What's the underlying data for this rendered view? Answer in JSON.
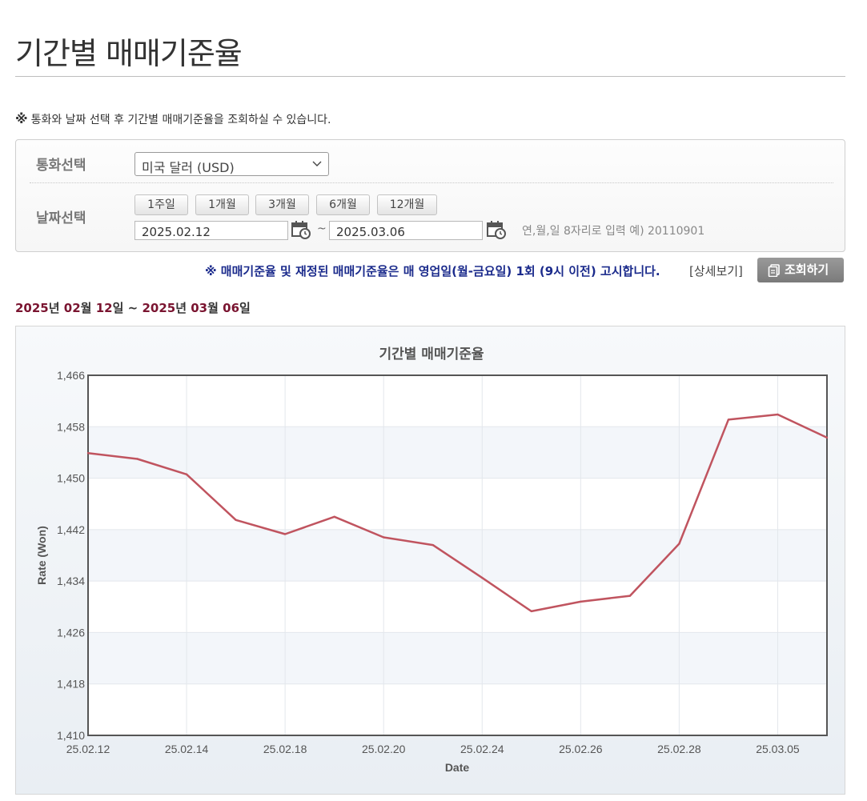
{
  "page": {
    "title": "기간별 매매기준율",
    "notice_mark": "※",
    "notice": "통화와 날짜 선택 후 기간별 매매기준율을 조회하실 수 있습니다."
  },
  "filter": {
    "currency_label": "통화선택",
    "currency_value": "미국 달러 (USD)",
    "date_label": "날짜선택",
    "period_buttons": [
      "1주일",
      "1개월",
      "3개월",
      "6개월",
      "12개월"
    ],
    "start_date": "2025.02.12",
    "end_date": "2025.03.06",
    "tilde": "~",
    "date_hint": "연,월,일 8자리로 입력 예) 20110901"
  },
  "actions": {
    "announcement": "※ 매매기준율 및 재정된 매매기준율은 매 영업일(월-금요일) 1회 (9시 이전) 고시합니다.",
    "detail_link": "[상세보기]",
    "search_button": "조회하기"
  },
  "range": {
    "start_year": "2025",
    "start_year_unit": "년",
    "start_month": "02",
    "start_month_unit": "월",
    "start_day": "12",
    "start_day_unit": "일",
    "separator": "~",
    "end_year": "2025",
    "end_year_unit": "년",
    "end_month": "03",
    "end_month_unit": "월",
    "end_day": "06",
    "end_day_unit": "일"
  },
  "colors": {
    "line": "#c0545f",
    "range_number": "#7a1430",
    "announcement": "#1b2b8c"
  },
  "chart_data": {
    "type": "line",
    "title": "기간별 매매기준율",
    "xlabel": "Date",
    "ylabel": "Rate (Won)",
    "ylim": [
      1410,
      1466
    ],
    "yticks": [
      "1,466",
      "1,458",
      "1,450",
      "1,442",
      "1,434",
      "1,426",
      "1,418",
      "1,410"
    ],
    "xtick_labels": [
      "25.02.12",
      "25.02.14",
      "25.02.18",
      "25.02.20",
      "25.02.24",
      "25.02.26",
      "25.02.28",
      "25.03.05"
    ],
    "x": [
      "25.02.12",
      "25.02.13",
      "25.02.14",
      "25.02.17",
      "25.02.18",
      "25.02.19",
      "25.02.20",
      "25.02.21",
      "25.02.24",
      "25.02.25",
      "25.02.26",
      "25.02.27",
      "25.02.28",
      "25.03.04",
      "25.03.05",
      "25.03.06"
    ],
    "series": [
      {
        "values": [
          1453.9,
          1453.0,
          1450.6,
          1443.5,
          1441.3,
          1444.0,
          1440.8,
          1439.6,
          1434.5,
          1429.3,
          1430.8,
          1431.7,
          1439.8,
          1459.1,
          1459.9,
          1456.3
        ]
      }
    ],
    "grid": true
  }
}
